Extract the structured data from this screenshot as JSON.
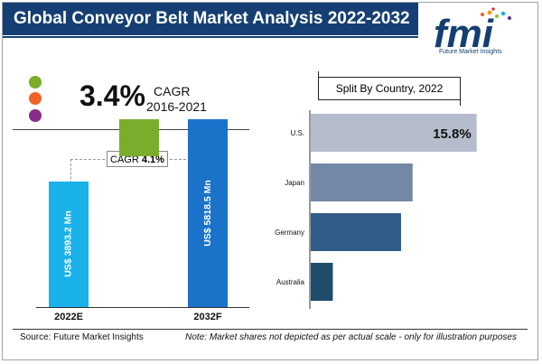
{
  "header": {
    "title": "Global Conveyor Belt Market Analysis 2022-2032",
    "logo_text": "fmi",
    "logo_tagline": "Future Market Insights"
  },
  "highlight": {
    "value": "3.4%",
    "label": "CAGR",
    "period": "2016-2021"
  },
  "legend_dots": [
    "#7bad2c",
    "#ef6326",
    "#8a2c8a"
  ],
  "chart_data": [
    {
      "type": "bar",
      "categories": [
        "2022E",
        "2032F"
      ],
      "values": [
        3893.2,
        5818.5
      ],
      "value_labels": [
        "US$ 3893.2 Mn",
        "US$ 5818.5 Mn"
      ],
      "ylim": [
        0,
        7500
      ],
      "colors": [
        "#1ab0ea",
        "#1a72c9"
      ],
      "incremental_color": "#7bad2c",
      "annotation": {
        "label": "CAGR",
        "value": "4.1%"
      }
    },
    {
      "type": "bar",
      "orientation": "horizontal",
      "title": "Split By Country, 2022",
      "categories": [
        "U.S.",
        "Japan",
        "Germany",
        "Australia"
      ],
      "values": [
        15.8,
        9.7,
        8.6,
        2.1
      ],
      "value_labels": [
        "15.8%",
        "",
        "",
        ""
      ],
      "xlim": [
        0,
        16
      ],
      "colors": [
        "#b5bdcc",
        "#7388a6",
        "#335d89",
        "#1f4b6d"
      ]
    }
  ],
  "footer": {
    "source": "Source: Future Market Insights",
    "note": "Note: Market shares not depicted as per actual scale - only for illustration purposes"
  }
}
